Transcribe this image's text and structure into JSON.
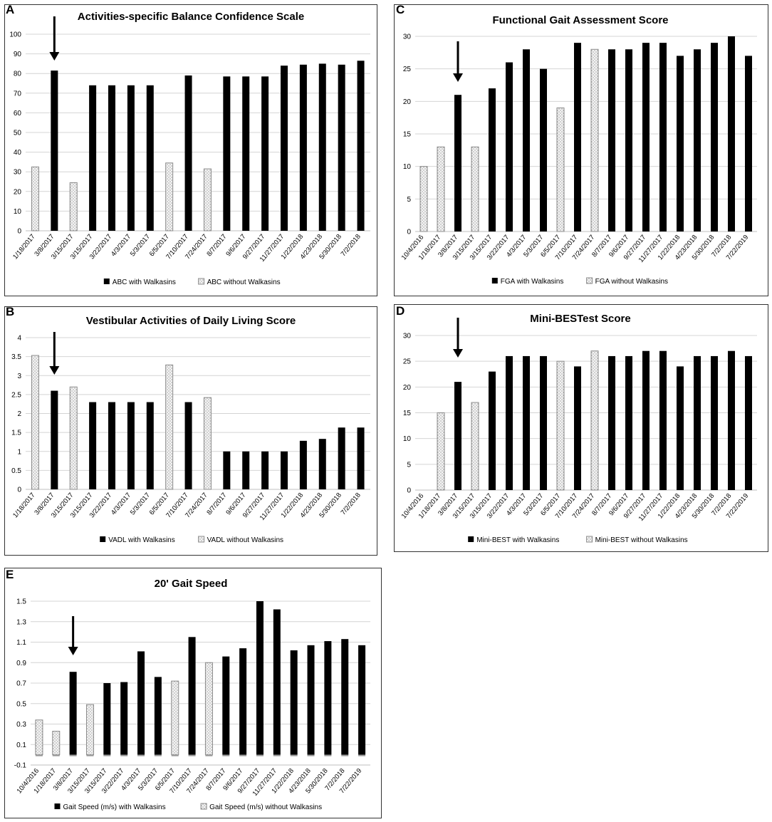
{
  "panels": [
    {
      "id": "A",
      "letter": "A"
    },
    {
      "id": "C",
      "letter": "C"
    },
    {
      "id": "B",
      "letter": "B"
    },
    {
      "id": "D",
      "letter": "D"
    },
    {
      "id": "E",
      "letter": "E"
    }
  ],
  "colors": {
    "with": "#000000",
    "without_fill": "#f4f4f4",
    "without_stroke": "#8a8a8a",
    "gridline": "#d4d4d4"
  },
  "chart_data": [
    {
      "id": "A",
      "type": "bar",
      "title": "Activities-specific  Balance  Confidence  Scale",
      "xlabel": "",
      "ylabel": "",
      "ylim": [
        0,
        100
      ],
      "yticks": [
        0,
        10,
        20,
        30,
        40,
        50,
        60,
        70,
        80,
        90,
        100
      ],
      "categories": [
        "1/18/2017",
        "3/8/2017",
        "3/15/2017",
        "3/15/2017",
        "3/22/2017",
        "4/3/2017",
        "5/3/2017",
        "6/5/2017",
        "7/10/2017",
        "7/24/2017",
        "8/7/2017",
        "9/6/2017",
        "9/27/2017",
        "11/27/2017",
        "1/22/2018",
        "4/23/2018",
        "5/30/2018",
        "7/2/2018"
      ],
      "series": [
        {
          "name": "ABC with Walkasins",
          "style": "with",
          "values": [
            null,
            81.5,
            null,
            74,
            74,
            74,
            74,
            null,
            79,
            null,
            78.5,
            78.5,
            78.5,
            84,
            84.5,
            85,
            84.5,
            86.5
          ]
        },
        {
          "name": "ABC without Walkasins",
          "style": "without",
          "values": [
            32.5,
            null,
            24.5,
            null,
            null,
            null,
            null,
            34.5,
            null,
            31.5,
            null,
            null,
            null,
            null,
            null,
            null,
            null,
            null
          ]
        }
      ],
      "arrow_at": "3/8/2017",
      "legend_position": "bottom-center",
      "grid": true
    },
    {
      "id": "C",
      "type": "bar",
      "title": "Functional  Gait  Assessment  Score",
      "xlabel": "",
      "ylabel": "",
      "ylim": [
        0,
        30
      ],
      "yticks": [
        0,
        5,
        10,
        15,
        20,
        25,
        30
      ],
      "categories": [
        "10/4/2016",
        "1/18/2017",
        "3/8/2017",
        "3/15/2017",
        "3/15/2017",
        "3/22/2017",
        "4/3/2017",
        "5/3/2017",
        "6/5/2017",
        "7/10/2017",
        "7/24/2017",
        "8/7/2017",
        "9/6/2017",
        "9/27/2017",
        "11/27/2017",
        "1/22/2018",
        "4/23/2018",
        "5/30/2018",
        "7/2/2018",
        "7/22/2019"
      ],
      "series": [
        {
          "name": "FGA with Walkasins",
          "style": "with",
          "values": [
            null,
            null,
            21,
            null,
            22,
            26,
            28,
            25,
            null,
            29,
            null,
            28,
            28,
            29,
            29,
            27,
            28,
            29,
            30,
            27
          ]
        },
        {
          "name": "FGA without Walkasins",
          "style": "without",
          "values": [
            10,
            13,
            null,
            13,
            null,
            null,
            null,
            null,
            19,
            null,
            28,
            null,
            null,
            null,
            null,
            null,
            null,
            null,
            null,
            null
          ]
        }
      ],
      "arrow_at": "3/8/2017",
      "legend_position": "bottom-center",
      "grid": true
    },
    {
      "id": "B",
      "type": "bar",
      "title": "Vestibular  Activities  of  Daily  Living  Score",
      "xlabel": "",
      "ylabel": "",
      "ylim": [
        0,
        4
      ],
      "yticks": [
        0,
        0.5,
        1,
        1.5,
        2,
        2.5,
        3,
        3.5,
        4
      ],
      "categories": [
        "1/18/2017",
        "3/8/2017",
        "3/15/2017",
        "3/15/2017",
        "3/22/2017",
        "4/3/2017",
        "5/3/2017",
        "6/5/2017",
        "7/10/2017",
        "7/24/2017",
        "8/7/2017",
        "9/6/2017",
        "9/27/2017",
        "11/27/2017",
        "1/22/2018",
        "4/23/2018",
        "5/30/2018",
        "7/2/2018"
      ],
      "series": [
        {
          "name": "VADL with Walkasins",
          "style": "with",
          "values": [
            null,
            2.6,
            null,
            2.3,
            2.3,
            2.3,
            2.3,
            null,
            2.3,
            null,
            1.0,
            1.0,
            1.0,
            1.0,
            1.28,
            1.33,
            1.63,
            1.63
          ]
        },
        {
          "name": "VADL without Walkasins",
          "style": "without",
          "values": [
            3.53,
            null,
            2.7,
            null,
            null,
            null,
            null,
            3.28,
            null,
            2.42,
            null,
            null,
            null,
            null,
            null,
            null,
            null,
            null
          ]
        }
      ],
      "arrow_at": "3/8/2017",
      "legend_position": "bottom-center",
      "grid": true
    },
    {
      "id": "D",
      "type": "bar",
      "title": "Mini-BESTest  Score",
      "xlabel": "",
      "ylabel": "",
      "ylim": [
        0,
        30
      ],
      "yticks": [
        0,
        5,
        10,
        15,
        20,
        25,
        30
      ],
      "categories": [
        "10/4/2016",
        "1/18/2017",
        "3/8/2017",
        "3/15/2017",
        "3/15/2017",
        "3/22/2017",
        "4/3/2017",
        "5/3/2017",
        "6/5/2017",
        "7/10/2017",
        "7/24/2017",
        "8/7/2017",
        "9/6/2017",
        "9/27/2017",
        "11/27/2017",
        "1/22/2018",
        "4/23/2018",
        "5/30/2018",
        "7/2/2018",
        "7/22/2019"
      ],
      "series": [
        {
          "name": "Mini-BEST with Walkasins",
          "style": "with",
          "values": [
            null,
            null,
            21,
            null,
            23,
            26,
            26,
            26,
            null,
            24,
            null,
            26,
            26,
            27,
            27,
            24,
            26,
            26,
            27,
            26
          ]
        },
        {
          "name": "Mini-BEST without Walkasins",
          "style": "without",
          "values": [
            null,
            15,
            null,
            17,
            null,
            null,
            null,
            null,
            25,
            null,
            27,
            null,
            null,
            null,
            null,
            null,
            null,
            null,
            null,
            null
          ]
        }
      ],
      "arrow_at": "3/8/2017",
      "legend_position": "bottom-center",
      "grid": true
    },
    {
      "id": "E",
      "type": "bar",
      "title": "20'  Gait  Speed",
      "xlabel": "",
      "ylabel": "",
      "ylim": [
        -0.1,
        1.5
      ],
      "yticks": [
        -0.1,
        0.1,
        0.3,
        0.5,
        0.7,
        0.9,
        1.1,
        1.3,
        1.5
      ],
      "ytick_labels": [
        "-0.1",
        "0.1",
        "0.3",
        "0.5",
        "0.7",
        "0.9",
        "1.1",
        "1.3",
        "1.5"
      ],
      "categories": [
        "10/4/2016",
        "1/18/2017",
        "3/8/2017",
        "3/15/2017",
        "3/15/2017",
        "3/22/2017",
        "4/3/2017",
        "5/3/2017",
        "6/5/2017",
        "7/10/2017",
        "7/24/2017",
        "8/7/2017",
        "9/6/2017",
        "9/27/2017",
        "11/27/2017",
        "1/22/2018",
        "4/23/2018",
        "5/30/2018",
        "7/2/2018",
        "7/22/2019"
      ],
      "series": [
        {
          "name": "Gait Speed (m/s) with Walkasins",
          "style": "with",
          "values": [
            null,
            null,
            0.81,
            null,
            0.7,
            0.71,
            1.01,
            0.76,
            null,
            1.15,
            null,
            0.96,
            1.04,
            1.5,
            1.42,
            1.02,
            1.07,
            1.11,
            1.13,
            1.07
          ]
        },
        {
          "name": "Gait Speed (m/s) without Walkasins",
          "style": "without",
          "values": [
            0.34,
            0.23,
            null,
            0.49,
            null,
            null,
            null,
            null,
            0.72,
            null,
            0.9,
            null,
            null,
            null,
            null,
            null,
            null,
            null,
            null,
            null
          ]
        }
      ],
      "arrow_at": "3/8/2017",
      "legend_position": "bottom-center",
      "grid": true
    }
  ]
}
